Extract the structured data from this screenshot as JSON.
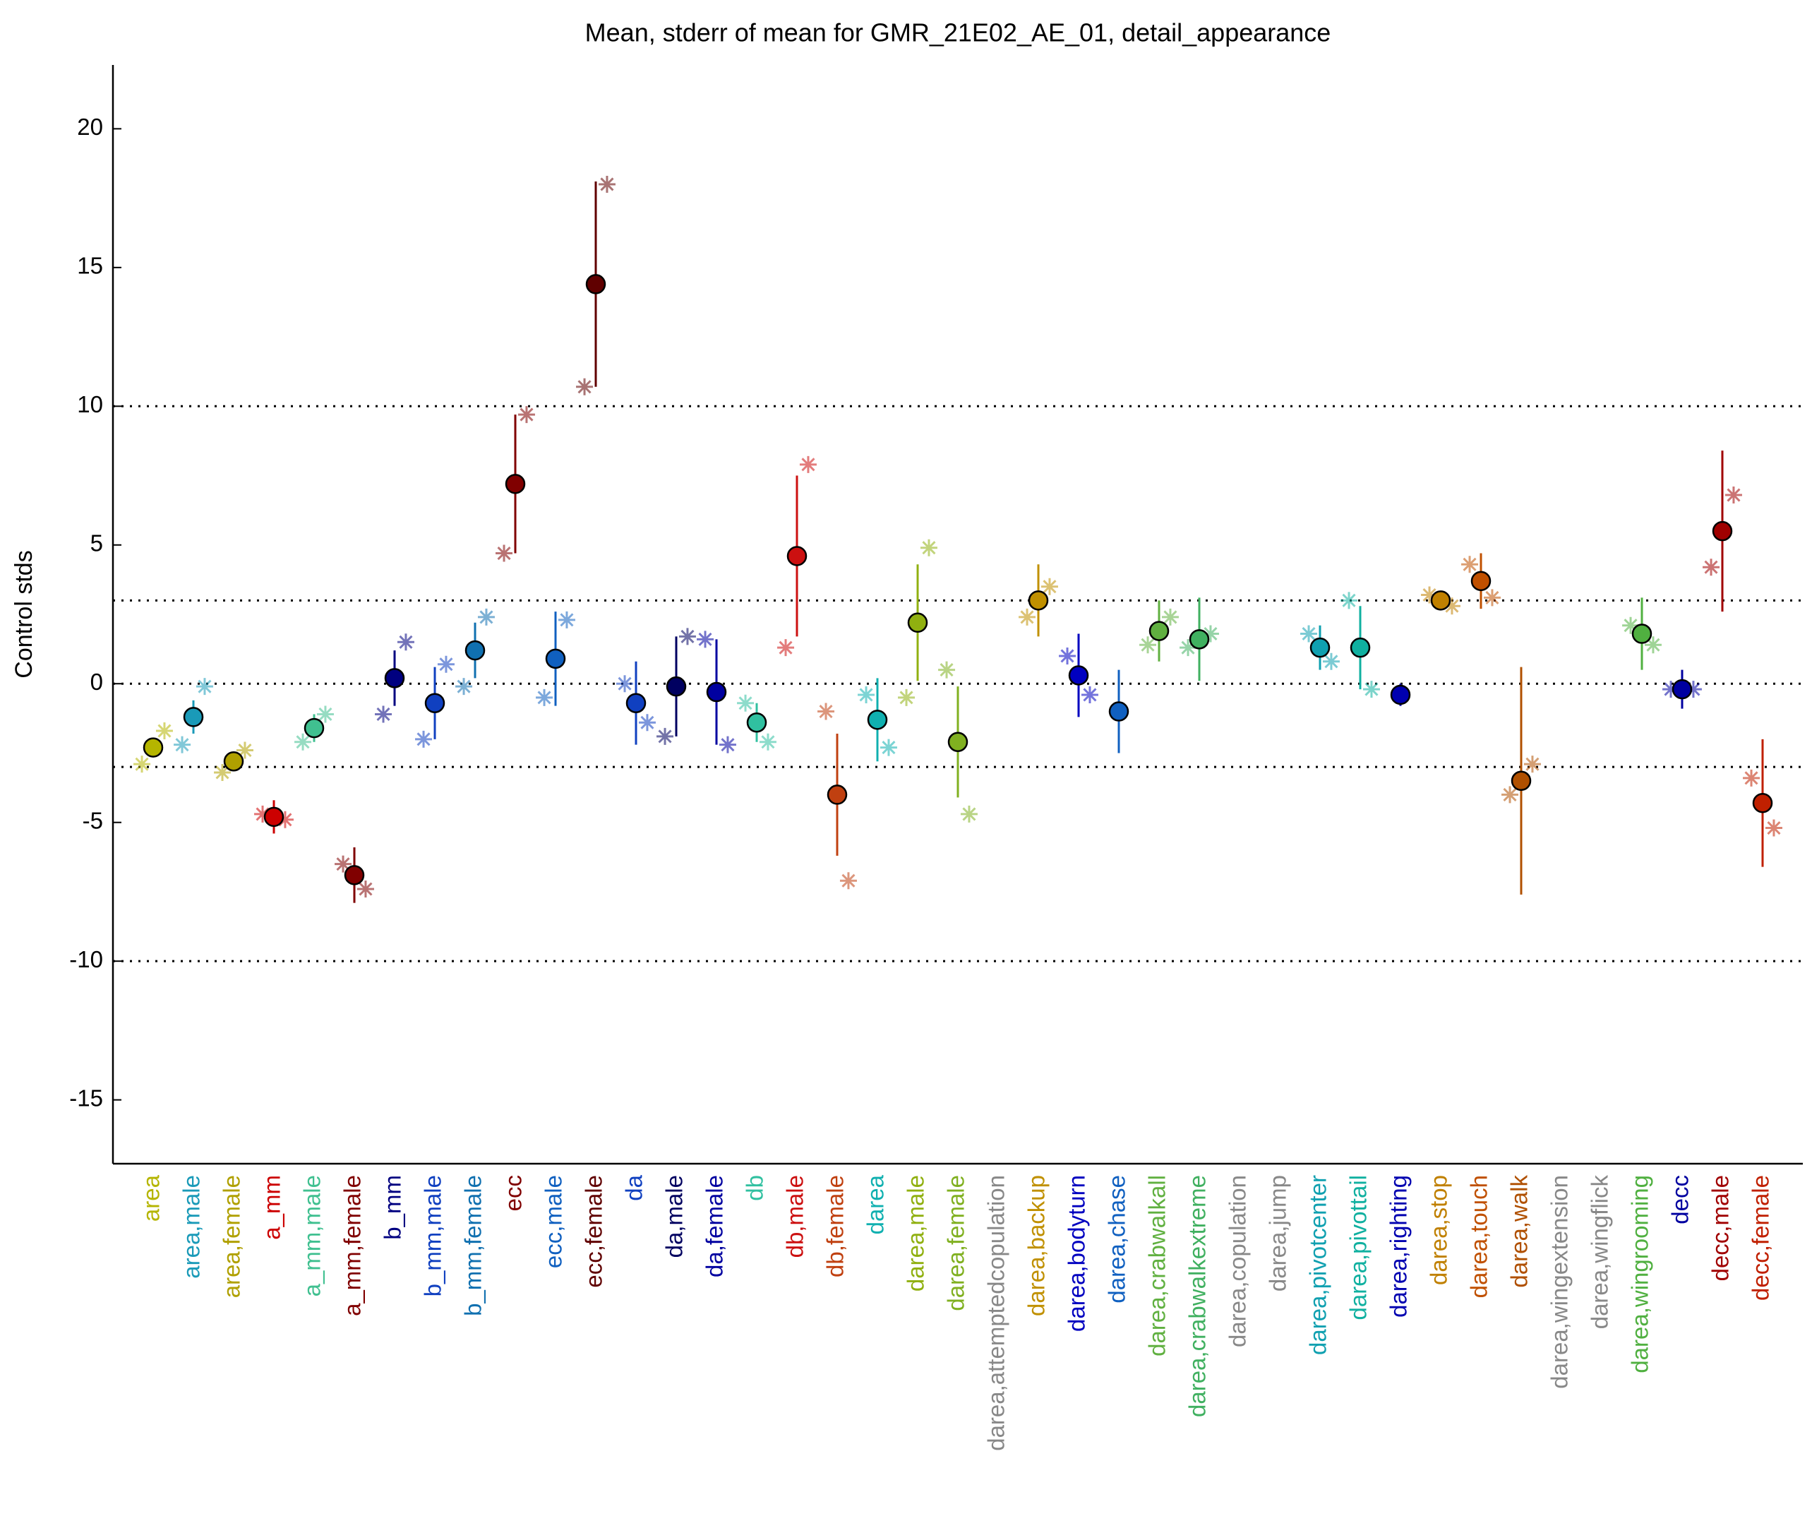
{
  "chart_data": {
    "type": "errorbar",
    "title": "Mean, stderr of mean for GMR_21E02_AE_01, detail_appearance",
    "ylabel": "Control stds",
    "categories": [
      "area",
      "area,male",
      "area,female",
      "a_mm",
      "a_mm,male",
      "a_mm,female",
      "b_mm",
      "b_mm,male",
      "b_mm,female",
      "ecc",
      "ecc,male",
      "ecc,female",
      "da",
      "da,male",
      "da,female",
      "db",
      "db,male",
      "db,female",
      "darea",
      "darea,male",
      "darea,female",
      "darea,attemptedcopulation",
      "darea,backup",
      "darea,bodyturn",
      "darea,chase",
      "darea,crabwalkall",
      "darea,crabwalkextreme",
      "darea,copulation",
      "darea,jump",
      "darea,pivotcenter",
      "darea,pivottail",
      "darea,righting",
      "darea,stop",
      "darea,touch",
      "darea,walk",
      "darea,wingextension",
      "darea,wingflick",
      "darea,wingrooming",
      "decc",
      "decc,male",
      "decc,female"
    ],
    "colors": [
      "#b5b500",
      "#1a9ab8",
      "#b0a000",
      "#cc0000",
      "#40c090",
      "#800000",
      "#000080",
      "#1040c0",
      "#1070b0",
      "#800000",
      "#1060c0",
      "#600000",
      "#1040c0",
      "#000060",
      "#0000a0",
      "#30c0a0",
      "#cc1010",
      "#c04010",
      "#10b0b0",
      "#90b010",
      "#80b020",
      "#888888",
      "#c09000",
      "#0000c0",
      "#1060c0",
      "#60b040",
      "#40b060",
      "#888888",
      "#888888",
      "#10a0b0",
      "#10b0a0",
      "#0000b0",
      "#c08000",
      "#c05000",
      "#b05000",
      "#888888",
      "#888888",
      "#50b040",
      "#0000a0",
      "#a00000",
      "#c02000"
    ],
    "values": [
      -2.3,
      -1.2,
      -2.8,
      -4.8,
      -1.6,
      -6.9,
      0.2,
      -0.7,
      1.2,
      7.2,
      0.9,
      14.4,
      -0.7,
      -0.1,
      -0.3,
      -1.4,
      4.6,
      -4.0,
      -1.3,
      2.2,
      -2.1,
      null,
      3.0,
      0.3,
      -1.0,
      1.9,
      1.6,
      null,
      null,
      1.3,
      1.3,
      -0.4,
      3.0,
      3.7,
      -3.5,
      null,
      null,
      1.8,
      -0.2,
      5.5,
      -4.3
    ],
    "errors": [
      0.3,
      0.6,
      0.3,
      0.6,
      0.5,
      1.0,
      1.0,
      1.3,
      1.0,
      2.5,
      1.7,
      3.7,
      1.5,
      1.8,
      1.9,
      0.7,
      2.9,
      2.2,
      1.5,
      2.1,
      2.0,
      null,
      1.3,
      1.5,
      1.5,
      1.1,
      1.5,
      null,
      null,
      0.8,
      1.5,
      0.4,
      0.2,
      1.0,
      4.1,
      null,
      null,
      1.3,
      0.7,
      2.9,
      2.3
    ],
    "values_left": [
      -2.9,
      -2.2,
      -3.2,
      -4.7,
      -2.1,
      -6.5,
      -1.1,
      -2.0,
      -0.1,
      4.7,
      -0.5,
      10.7,
      0.0,
      -1.9,
      1.6,
      -0.7,
      1.3,
      -1.0,
      -0.4,
      -0.5,
      0.5,
      null,
      2.4,
      1.0,
      null,
      1.4,
      1.3,
      null,
      null,
      1.8,
      3.0,
      null,
      3.2,
      4.3,
      -4.0,
      null,
      null,
      2.1,
      -0.2,
      4.2,
      -3.4
    ],
    "values_right": [
      -1.7,
      -0.1,
      -2.4,
      -4.9,
      -1.1,
      -7.4,
      1.5,
      0.7,
      2.4,
      9.7,
      2.3,
      18.0,
      -1.4,
      1.7,
      -2.2,
      -2.1,
      7.9,
      -7.1,
      -2.3,
      4.9,
      -4.7,
      null,
      3.5,
      -0.4,
      null,
      2.4,
      1.8,
      null,
      null,
      0.8,
      -0.2,
      null,
      2.8,
      3.1,
      -2.9,
      null,
      null,
      1.4,
      -0.2,
      6.8,
      -5.2
    ],
    "xlim": [
      0,
      42
    ],
    "ylim": [
      -17.3,
      22.3
    ],
    "yticks": [
      -15,
      -10,
      -5,
      0,
      5,
      10,
      15,
      20
    ],
    "hlines": [
      -10,
      -3,
      0,
      3,
      10
    ]
  }
}
